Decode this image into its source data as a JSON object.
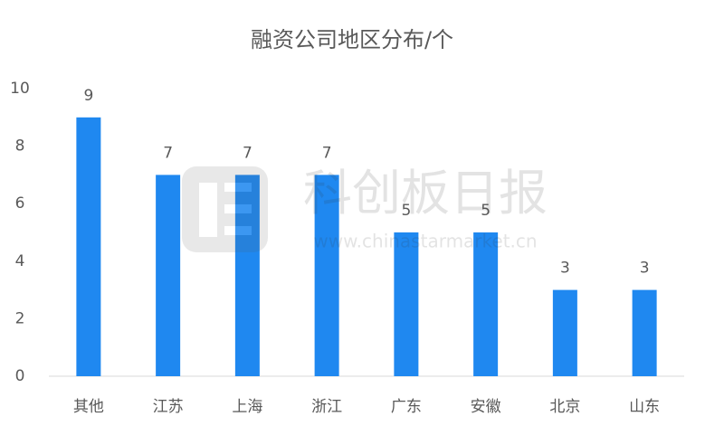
{
  "chart_data": {
    "type": "bar",
    "title": "融资公司地区分布/个",
    "categories": [
      "其他",
      "江苏",
      "上海",
      "浙江",
      "广东",
      "安徽",
      "北京",
      "山东"
    ],
    "values": [
      9,
      7,
      7,
      7,
      5,
      5,
      3,
      3
    ],
    "color": "#1f88f0",
    "ylim": [
      0,
      10
    ],
    "yticks": [
      0,
      2,
      4,
      6,
      8,
      10
    ],
    "grid": false,
    "watermark": {
      "title": "科创板日报",
      "url": "www.chinastarmarket.cn"
    }
  }
}
